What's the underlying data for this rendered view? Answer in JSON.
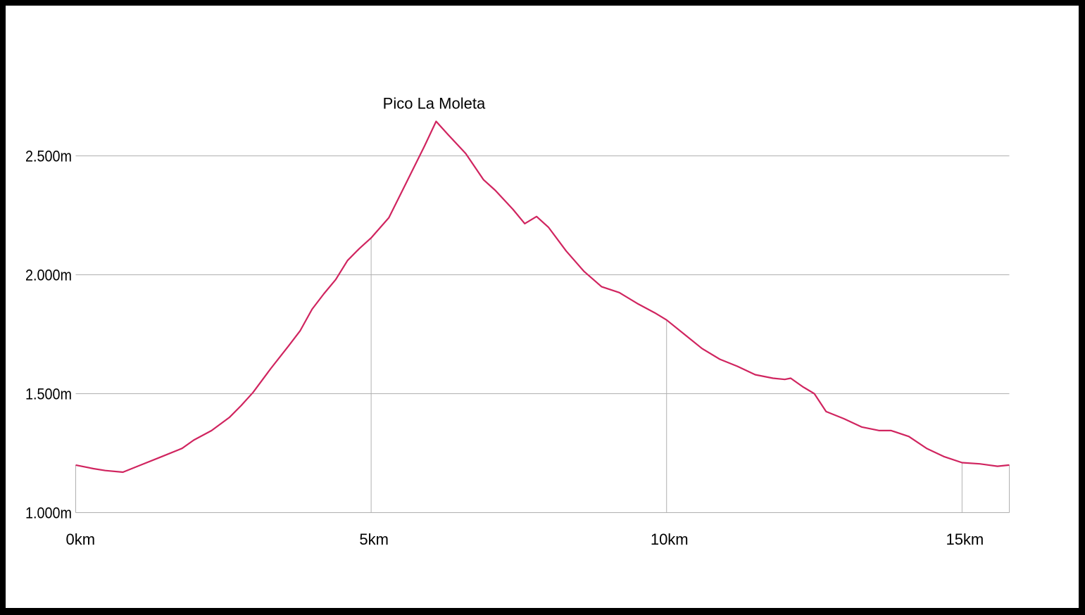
{
  "chart_data": {
    "type": "area",
    "title": "",
    "xlabel": "",
    "ylabel": "",
    "x_unit": "km",
    "y_unit": "m",
    "xlim": [
      0,
      15.8
    ],
    "ylim": [
      1000,
      2750
    ],
    "x_ticks": [
      {
        "value": 0,
        "label": "0km"
      },
      {
        "value": 5,
        "label": "5km"
      },
      {
        "value": 10,
        "label": "10km"
      },
      {
        "value": 15,
        "label": "15km"
      }
    ],
    "y_ticks": [
      {
        "value": 1000,
        "label": "1.000m"
      },
      {
        "value": 1500,
        "label": "1.500m"
      },
      {
        "value": 2000,
        "label": "2.000m"
      },
      {
        "value": 2500,
        "label": "2.500m"
      }
    ],
    "grid": {
      "horizontal": true,
      "vertical": true
    },
    "annotations": [
      {
        "label": "Pico La Moleta",
        "x": 6.1,
        "y": 2645
      }
    ],
    "series": [
      {
        "color": "#d0245f",
        "x": [
          0,
          0.3,
          0.5,
          0.8,
          1.1,
          1.4,
          1.8,
          2.0,
          2.3,
          2.6,
          2.8,
          3.0,
          3.3,
          3.6,
          3.8,
          4.0,
          4.2,
          4.4,
          4.6,
          4.8,
          5.0,
          5.3,
          5.6,
          5.9,
          6.1,
          6.3,
          6.6,
          6.9,
          7.1,
          7.4,
          7.6,
          7.8,
          8.0,
          8.3,
          8.6,
          8.9,
          9.2,
          9.5,
          9.8,
          10.0,
          10.3,
          10.6,
          10.9,
          11.2,
          11.5,
          11.8,
          12.0,
          12.1,
          12.3,
          12.5,
          12.7,
          13.0,
          13.3,
          13.6,
          13.8,
          14.1,
          14.4,
          14.7,
          15.0,
          15.3,
          15.6,
          15.8
        ],
        "y": [
          1200,
          1185,
          1177,
          1170,
          1200,
          1230,
          1270,
          1305,
          1345,
          1400,
          1450,
          1505,
          1605,
          1700,
          1765,
          1855,
          1920,
          1980,
          2060,
          2110,
          2155,
          2240,
          2390,
          2540,
          2645,
          2590,
          2510,
          2400,
          2355,
          2275,
          2215,
          2245,
          2200,
          2100,
          2015,
          1950,
          1925,
          1880,
          1840,
          1810,
          1750,
          1690,
          1645,
          1615,
          1580,
          1565,
          1560,
          1565,
          1530,
          1500,
          1425,
          1395,
          1360,
          1345,
          1345,
          1320,
          1270,
          1235,
          1210,
          1205,
          1195,
          1200
        ]
      }
    ]
  }
}
